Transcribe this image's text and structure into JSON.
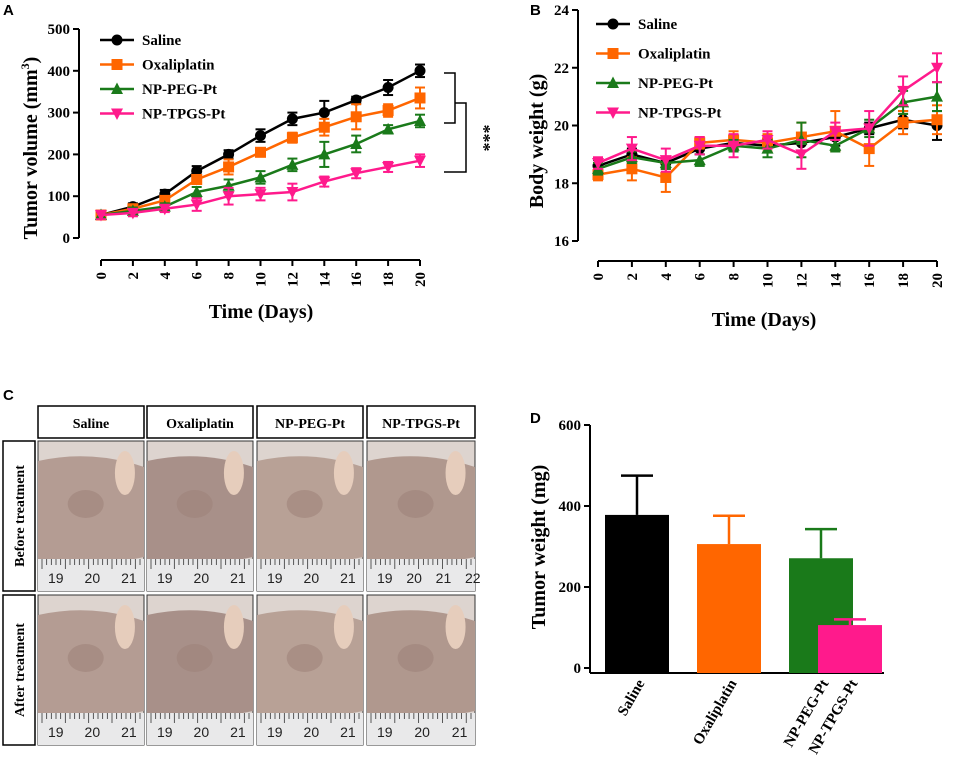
{
  "panel_letters": [
    "A",
    "B",
    "C",
    "D"
  ],
  "groups": [
    "Saline",
    "Oxaliplatin",
    "NP-PEG-Pt",
    "NP-TPGS-Pt"
  ],
  "colors": {
    "Saline": "#000000",
    "Oxaliplatin": "#ff6600",
    "NP-PEG-Pt": "#1a7a1a",
    "NP-TPGS-Pt": "#ff1a8c"
  },
  "significance": "***",
  "chart_data": [
    {
      "panel": "A",
      "type": "line",
      "xlabel": "Time (Days)",
      "ylabel": "Tumor volume (mm",
      "ylabel_sup": "3",
      "ylabel_close": ")",
      "x": [
        0,
        2,
        4,
        6,
        8,
        10,
        12,
        14,
        16,
        18,
        20
      ],
      "xticks": [
        "0",
        "2",
        "4",
        "6",
        "8",
        "10",
        "12",
        "14",
        "16",
        "18",
        "20"
      ],
      "ylim": [
        0,
        500
      ],
      "yticks": [
        "0",
        "100",
        "200",
        "300",
        "400",
        "500"
      ],
      "legend": "top-left",
      "series": [
        {
          "name": "Saline",
          "values": [
            55,
            75,
            105,
            160,
            200,
            245,
            285,
            300,
            330,
            360,
            400
          ],
          "errors": [
            8,
            8,
            10,
            12,
            10,
            15,
            15,
            28,
            8,
            18,
            15
          ]
        },
        {
          "name": "Oxaliplatin",
          "values": [
            55,
            70,
            90,
            140,
            170,
            205,
            240,
            265,
            290,
            305,
            335
          ],
          "errors": [
            8,
            8,
            10,
            10,
            18,
            10,
            12,
            20,
            30,
            15,
            25
          ]
        },
        {
          "name": "NP-PEG-Pt",
          "values": [
            55,
            65,
            75,
            110,
            125,
            145,
            175,
            200,
            225,
            260,
            280
          ],
          "errors": [
            8,
            8,
            8,
            12,
            15,
            15,
            15,
            30,
            20,
            10,
            15
          ]
        },
        {
          "name": "NP-TPGS-Pt",
          "values": [
            55,
            60,
            70,
            80,
            100,
            105,
            110,
            135,
            155,
            170,
            185
          ],
          "errors": [
            10,
            8,
            8,
            15,
            20,
            15,
            20,
            12,
            12,
            12,
            15
          ]
        }
      ]
    },
    {
      "panel": "B",
      "type": "line",
      "xlabel": "Time (Days)",
      "ylabel": "Body weight (g)",
      "x": [
        0,
        2,
        4,
        6,
        8,
        10,
        12,
        14,
        16,
        18,
        20
      ],
      "xticks": [
        "0",
        "2",
        "4",
        "6",
        "8",
        "10",
        "12",
        "14",
        "16",
        "18",
        "20"
      ],
      "ylim": [
        16,
        24
      ],
      "yticks": [
        "16",
        "18",
        "20",
        "22",
        "24"
      ],
      "legend": "top-left",
      "series": [
        {
          "name": "Saline",
          "values": [
            18.6,
            19.0,
            18.7,
            19.2,
            19.4,
            19.3,
            19.4,
            19.6,
            19.9,
            20.2,
            20.0
          ],
          "errors": [
            0.2,
            0.2,
            0.2,
            0.2,
            0.2,
            0.2,
            0.3,
            0.3,
            0.2,
            0.3,
            0.5
          ]
        },
        {
          "name": "Oxaliplatin",
          "values": [
            18.3,
            18.5,
            18.2,
            19.4,
            19.5,
            19.4,
            19.6,
            19.8,
            19.2,
            20.1,
            20.2
          ],
          "errors": [
            0.2,
            0.4,
            0.5,
            0.2,
            0.3,
            0.3,
            0.5,
            0.7,
            0.6,
            0.4,
            0.5
          ]
        },
        {
          "name": "NP-PEG-Pt",
          "values": [
            18.5,
            18.9,
            18.7,
            18.8,
            19.3,
            19.2,
            19.5,
            19.3,
            19.9,
            20.8,
            21.0
          ],
          "errors": [
            0.2,
            0.2,
            0.2,
            0.2,
            0.2,
            0.3,
            0.6,
            0.2,
            0.3,
            0.4,
            0.5
          ]
        },
        {
          "name": "NP-TPGS-Pt",
          "values": [
            18.7,
            19.2,
            18.8,
            19.3,
            19.3,
            19.5,
            19.0,
            19.8,
            19.9,
            21.2,
            22.0
          ],
          "errors": [
            0.2,
            0.4,
            0.4,
            0.3,
            0.4,
            0.3,
            0.5,
            0.3,
            0.6,
            0.5,
            0.5
          ]
        }
      ]
    },
    {
      "panel": "D",
      "type": "bar",
      "ylabel": "Tumor weight (mg)",
      "categories": [
        "Saline",
        "Oxaliplatin",
        "NP-PEG-Pt",
        "NP-TPGS-Pt"
      ],
      "values": [
        378,
        306,
        271,
        106
      ],
      "errors": [
        97,
        70,
        72,
        14
      ],
      "ylim": [
        0,
        600
      ],
      "yticks": [
        "0",
        "200",
        "400",
        "600"
      ]
    }
  ],
  "photo_panel": {
    "columns": [
      "Saline",
      "Oxaliplatin",
      "NP-PEG-Pt",
      "NP-TPGS-Pt"
    ],
    "rows": [
      "Before treatment",
      "After treatment"
    ],
    "ruler_labels": [
      [
        "19",
        "20",
        "21"
      ],
      [
        "19",
        "20",
        "21"
      ],
      [
        "19",
        "20",
        "21"
      ],
      [
        "19",
        "20",
        "21",
        "22"
      ],
      [
        "19",
        "20",
        "21"
      ],
      [
        "19",
        "20",
        "21"
      ],
      [
        "19",
        "20",
        "21"
      ],
      [
        "19",
        "20",
        "21"
      ]
    ]
  }
}
